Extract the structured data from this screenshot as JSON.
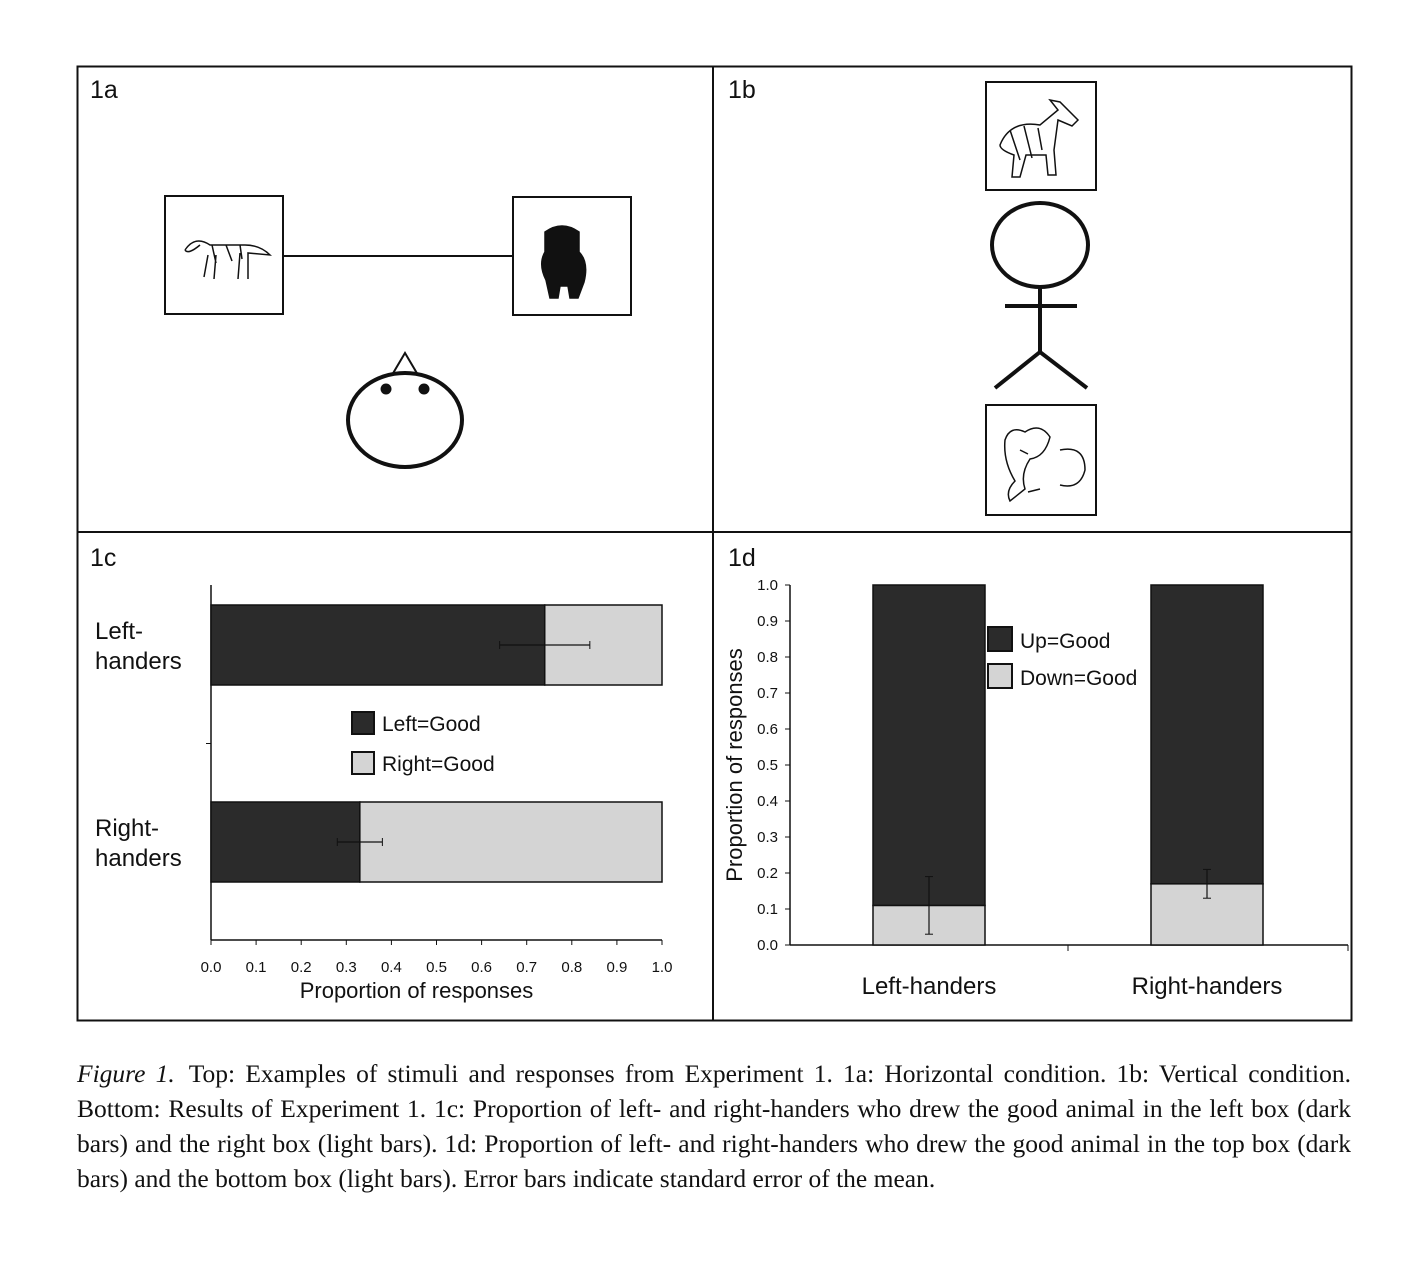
{
  "panels": {
    "a": {
      "label": "1a"
    },
    "b": {
      "label": "1b"
    }
  },
  "chart_data": [
    {
      "type": "bar",
      "horizontal": true,
      "label": "1c",
      "categories": [
        [
          "Left-",
          "handers"
        ],
        [
          "Right-",
          "handers"
        ]
      ],
      "series": [
        {
          "name": "Left=Good",
          "color": "#2b2b2b",
          "values": [
            0.74,
            0.33
          ],
          "errors": [
            0.1,
            0.05
          ]
        },
        {
          "name": "Right=Good",
          "color": "#d4d4d4",
          "values": [
            0.26,
            0.67
          ]
        }
      ],
      "xlim": [
        0,
        1
      ],
      "xticks": [
        {
          "value": 0,
          "label": "0.0"
        },
        0.1,
        0.2,
        0.3,
        0.4,
        0.5,
        0.6,
        0.7,
        0.8,
        0.9,
        {
          "value": 1,
          "label": "1.0"
        }
      ],
      "xlabel": "Proportion of responses"
    },
    {
      "type": "bar",
      "horizontal": false,
      "label": "1d",
      "legend_reversed": true,
      "categories": [
        "Left-handers",
        "Right-handers"
      ],
      "series": [
        {
          "name": "Down=Good",
          "color": "#d4d4d4",
          "values": [
            0.11,
            0.17
          ],
          "errors": [
            0.08,
            0.04
          ]
        },
        {
          "name": "Up=Good",
          "color": "#2b2b2b",
          "values": [
            0.89,
            0.83
          ]
        }
      ],
      "ylim": [
        0,
        1
      ],
      "yticks": [
        {
          "value": 0,
          "label": "0.0"
        },
        0.1,
        0.2,
        0.3,
        0.4,
        0.5,
        0.6,
        0.7,
        0.8,
        0.9,
        {
          "value": 1,
          "label": "1.0"
        }
      ],
      "ylabel": "Proportion of responses"
    }
  ],
  "caption": {
    "lead": "Figure 1.",
    "text": "Top: Examples of stimuli and responses from Experiment 1. 1a: Horizontal condition. 1b: Vertical condition. Bottom: Results of Experiment 1. 1c: Proportion of left- and right-handers who drew the good animal in the left box (dark bars) and the right box (light bars). 1d: Proportion of left- and right-handers who drew the good animal in the top box (dark bars) and the bottom box (light bars). Error bars indicate standard error of the mean."
  }
}
